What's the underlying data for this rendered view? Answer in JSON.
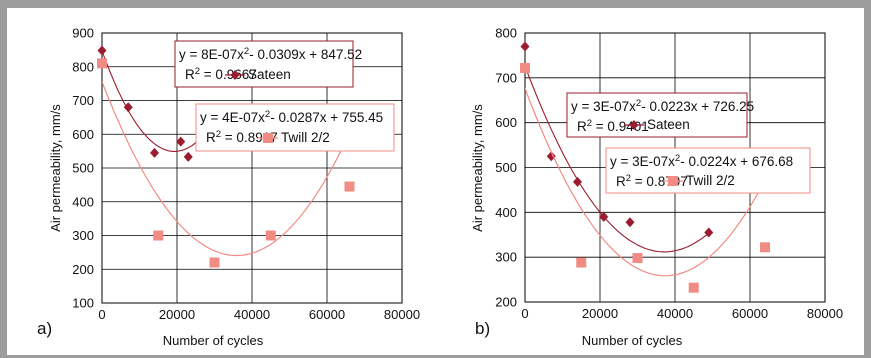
{
  "colors": {
    "sateen": "#9b1c2e",
    "twill": "#f08c84",
    "grid": "#000000",
    "frame": "#9d9d9d"
  },
  "chart_data": [
    {
      "type": "scatter",
      "panel_label": "a)",
      "xlabel": "Number of cycles",
      "ylabel": "Air permeability, mm/s",
      "xlim": [
        0,
        80000
      ],
      "ylim": [
        100,
        900
      ],
      "xticks": [
        0,
        20000,
        40000,
        60000,
        80000
      ],
      "yticks": [
        100,
        200,
        300,
        400,
        500,
        600,
        700,
        800,
        900
      ],
      "grid": true,
      "series": [
        {
          "name": "Sateen",
          "marker": "diamond",
          "points": [
            [
              0,
              848
            ],
            [
              7000,
              680
            ],
            [
              14000,
              545
            ],
            [
              21000,
              578
            ],
            [
              23000,
              533
            ]
          ],
          "trend": {
            "a": 8e-07,
            "b": -0.0309,
            "c": 847.52,
            "x_range": [
              0,
              26000
            ]
          },
          "equation_line1": "y = 8E-07x",
          "equation_line1_tail": "- 0.0309x + 847.52",
          "r2_value": "= 0.9667"
        },
        {
          "name": "Twill 2/2",
          "marker": "square",
          "points": [
            [
              0,
              810
            ],
            [
              15000,
              300
            ],
            [
              30000,
              220
            ],
            [
              45000,
              300
            ],
            [
              66000,
              445
            ]
          ],
          "trend": {
            "a": 4e-07,
            "b": -0.0287,
            "c": 755.45,
            "x_range": [
              0,
              66000
            ]
          },
          "equation_line1": "y = 4E-07x",
          "equation_line1_tail": "- 0.0287x + 755.45",
          "r2_value": "= 0.8917"
        }
      ]
    },
    {
      "type": "scatter",
      "panel_label": "b)",
      "xlabel": "Number of cycles",
      "ylabel": "Air permeability, mm/s",
      "xlim": [
        0,
        80000
      ],
      "ylim": [
        200,
        800
      ],
      "xticks": [
        0,
        20000,
        40000,
        60000,
        80000
      ],
      "yticks": [
        200,
        300,
        400,
        500,
        600,
        700,
        800
      ],
      "grid": true,
      "series": [
        {
          "name": "Sateen",
          "marker": "diamond",
          "points": [
            [
              0,
              770
            ],
            [
              7000,
              525
            ],
            [
              14000,
              468
            ],
            [
              21000,
              390
            ],
            [
              28000,
              378
            ],
            [
              49000,
              355
            ]
          ],
          "trend": {
            "a": 3e-07,
            "b": -0.0223,
            "c": 726.25,
            "x_range": [
              0,
              49000
            ]
          },
          "equation_line1": "y = 3E-07x",
          "equation_line1_tail": "- 0.0223x + 726.25",
          "r2_value": "= 0.9401"
        },
        {
          "name": "Twill 2/2",
          "marker": "square",
          "points": [
            [
              0,
              722
            ],
            [
              15000,
              288
            ],
            [
              30000,
              298
            ],
            [
              45000,
              232
            ],
            [
              64000,
              322
            ]
          ],
          "trend": {
            "a": 3e-07,
            "b": -0.0224,
            "c": 676.68,
            "x_range": [
              0,
              65000
            ]
          },
          "equation_line1": "y = 3E-07x",
          "equation_line1_tail": "- 0.0224x + 676.68",
          "r2_value": "= 0.8797"
        }
      ]
    }
  ]
}
